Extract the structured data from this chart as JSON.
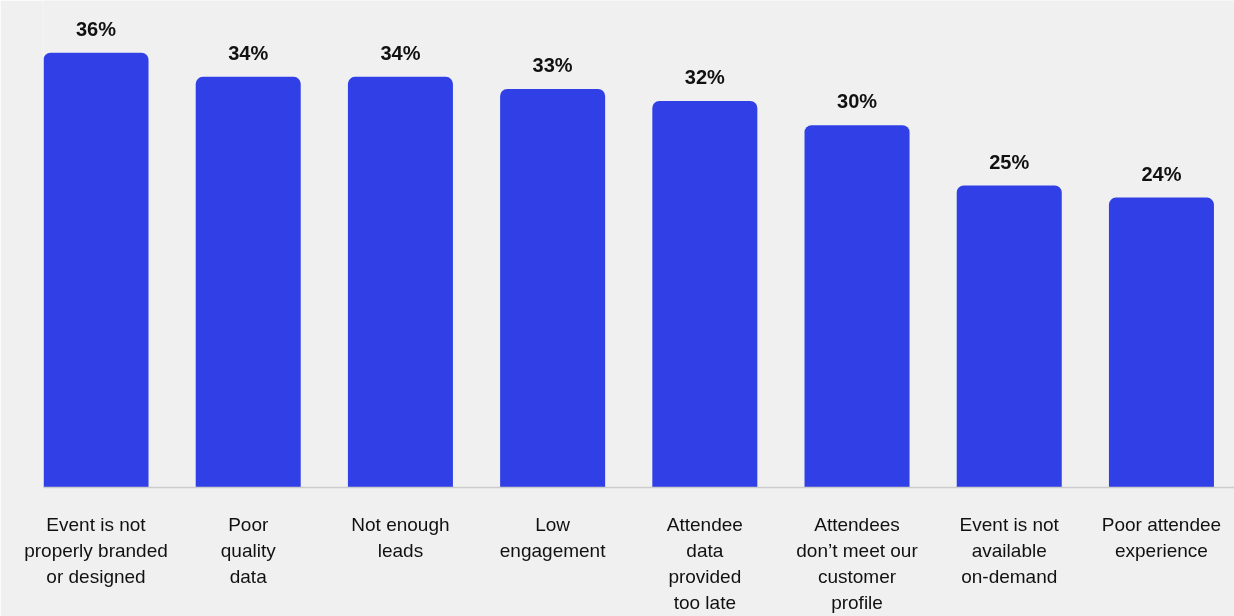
{
  "chart_data": {
    "type": "bar",
    "categories": [
      "Event is not\nproperly branded\nor designed",
      "Poor\nquality\ndata",
      "Not enough\nleads",
      "Low\nengagement",
      "Attendee\ndata\nprovided\ntoo late",
      "Attendees\ndon’t meet our\ncustomer\nprofile",
      "Event is not\navailable\non-demand",
      "Poor attendee\nexperience"
    ],
    "values": [
      36,
      34,
      34,
      33,
      32,
      30,
      25,
      24
    ],
    "value_labels": [
      "36%",
      "34%",
      "34%",
      "33%",
      "32%",
      "30%",
      "25%",
      "24%"
    ],
    "color": "#3040e6"
  }
}
